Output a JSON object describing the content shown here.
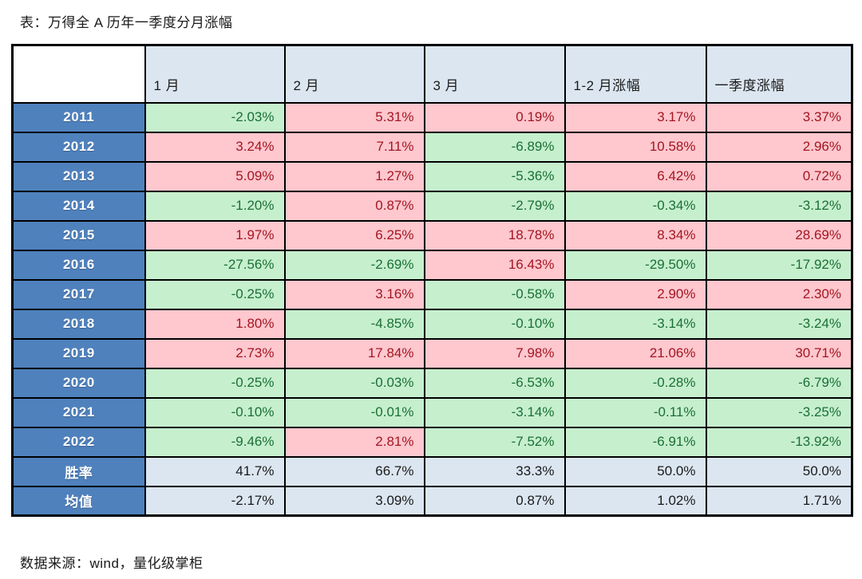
{
  "title": "表：万得全 A 历年一季度分月涨幅",
  "source": "数据来源：wind，量化级掌柜",
  "colors": {
    "positive_bg": "#ffc7ce",
    "positive_text": "#a31621",
    "negative_bg": "#c6efce",
    "negative_text": "#1a7033",
    "row_header_bg": "#4f81bd",
    "row_header_text": "#ffffff",
    "column_header_bg": "#dce6f1",
    "stat_row_bg": "#dce6f1",
    "border": "#000000"
  },
  "chart_data": {
    "type": "table",
    "title": "表：万得全 A 历年一季度分月涨幅",
    "columns": [
      "",
      "1 月",
      "2 月",
      "3 月",
      "1-2 月涨幅",
      "一季度涨幅"
    ],
    "rows": [
      {
        "label": "2011",
        "type": "year",
        "values": [
          "-2.03%",
          "5.31%",
          "0.19%",
          "3.17%",
          "3.37%"
        ]
      },
      {
        "label": "2012",
        "type": "year",
        "values": [
          "3.24%",
          "7.11%",
          "-6.89%",
          "10.58%",
          "2.96%"
        ]
      },
      {
        "label": "2013",
        "type": "year",
        "values": [
          "5.09%",
          "1.27%",
          "-5.36%",
          "6.42%",
          "0.72%"
        ]
      },
      {
        "label": "2014",
        "type": "year",
        "values": [
          "-1.20%",
          "0.87%",
          "-2.79%",
          "-0.34%",
          "-3.12%"
        ]
      },
      {
        "label": "2015",
        "type": "year",
        "values": [
          "1.97%",
          "6.25%",
          "18.78%",
          "8.34%",
          "28.69%"
        ]
      },
      {
        "label": "2016",
        "type": "year",
        "values": [
          "-27.56%",
          "-2.69%",
          "16.43%",
          "-29.50%",
          "-17.92%"
        ]
      },
      {
        "label": "2017",
        "type": "year",
        "values": [
          "-0.25%",
          "3.16%",
          "-0.58%",
          "2.90%",
          "2.30%"
        ]
      },
      {
        "label": "2018",
        "type": "year",
        "values": [
          "1.80%",
          "-4.85%",
          "-0.10%",
          "-3.14%",
          "-3.24%"
        ]
      },
      {
        "label": "2019",
        "type": "year",
        "values": [
          "2.73%",
          "17.84%",
          "7.98%",
          "21.06%",
          "30.71%"
        ]
      },
      {
        "label": "2020",
        "type": "year",
        "values": [
          "-0.25%",
          "-0.03%",
          "-6.53%",
          "-0.28%",
          "-6.79%"
        ]
      },
      {
        "label": "2021",
        "type": "year",
        "values": [
          "-0.10%",
          "-0.01%",
          "-3.14%",
          "-0.11%",
          "-3.25%"
        ]
      },
      {
        "label": "2022",
        "type": "year",
        "values": [
          "-9.46%",
          "2.81%",
          "-7.52%",
          "-6.91%",
          "-13.92%"
        ]
      },
      {
        "label": "胜率",
        "type": "stat",
        "values": [
          "41.7%",
          "66.7%",
          "33.3%",
          "50.0%",
          "50.0%"
        ]
      },
      {
        "label": "均值",
        "type": "stat",
        "values": [
          "-2.17%",
          "3.09%",
          "0.87%",
          "1.02%",
          "1.71%"
        ]
      }
    ],
    "legend_position": "none",
    "notes": "positive values shaded pink with dark-red text, negative values shaded green with dark-green text, stat rows shaded light blue"
  }
}
